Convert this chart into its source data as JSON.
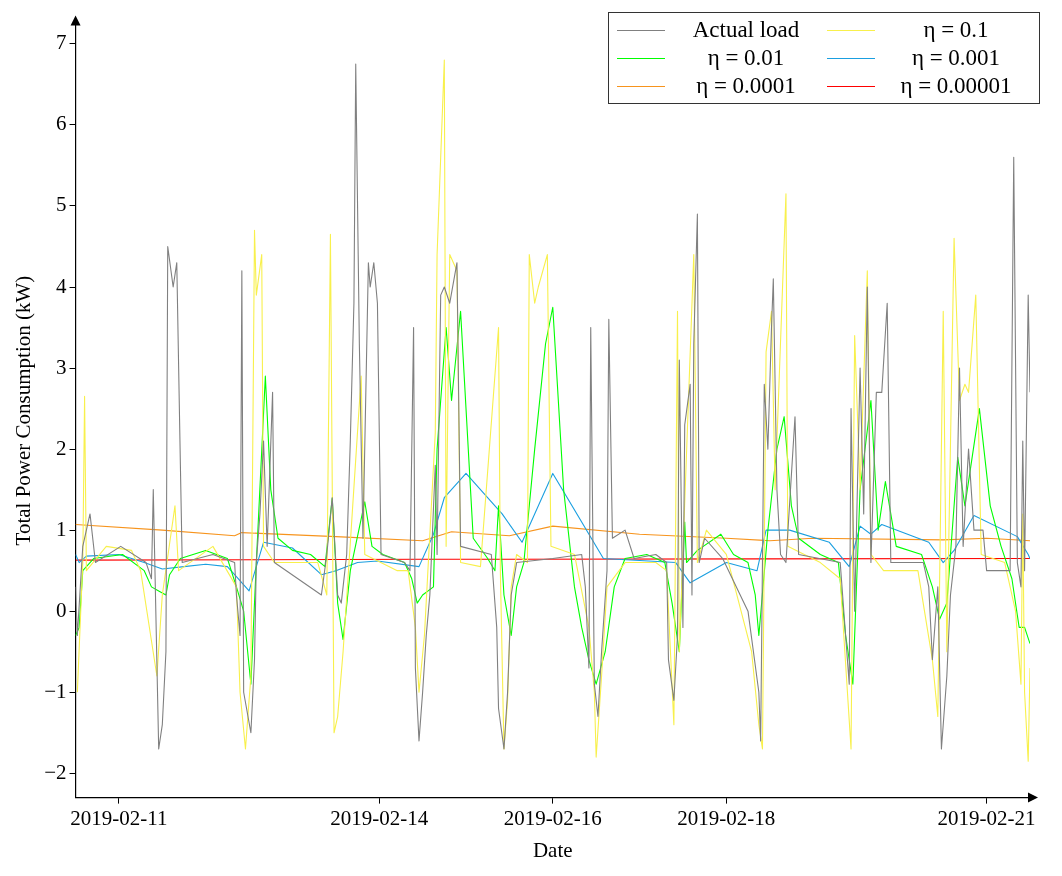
{
  "chart_data": {
    "type": "line",
    "xlabel": "Date",
    "ylabel": "Total Power Consumption (kW)",
    "xlim": [
      "2019-02-10T12:00",
      "2019-02-21T12:00"
    ],
    "xticks": [
      "2019-02-11",
      "2019-02-14",
      "2019-02-16",
      "2019-02-18",
      "2019-02-21"
    ],
    "ylim": [
      -2.3,
      7.25
    ],
    "yticks": [
      -2,
      -1,
      0,
      1,
      2,
      3,
      4,
      5,
      6,
      7
    ],
    "legend": "top right",
    "marker": "none",
    "line_style": "solid",
    "series": [
      {
        "name": "Actual load",
        "color": "#808080",
        "x": [
          "2019-02-10T12:00",
          "2019-02-10T12:30",
          "2019-02-10T14:00",
          "2019-02-10T16:00",
          "2019-02-10T17:30",
          "2019-02-11T00:30",
          "2019-02-11T07:30",
          "2019-02-11T09:00",
          "2019-02-11T09:30",
          "2019-02-11T11:00",
          "2019-02-11T12:00",
          "2019-02-11T13:00",
          "2019-02-11T13:30",
          "2019-02-11T15:00",
          "2019-02-11T16:00",
          "2019-02-11T17:00",
          "2019-02-11T17:30",
          "2019-02-12T02:00",
          "2019-02-12T08:00",
          "2019-02-12T08:30",
          "2019-02-12T09:30",
          "2019-02-12T10:00",
          "2019-02-12T10:30",
          "2019-02-12T12:30",
          "2019-02-12T13:30",
          "2019-02-12T14:00",
          "2019-02-12T15:00",
          "2019-02-12T16:00",
          "2019-02-12T17:00",
          "2019-02-12T18:30",
          "2019-02-12T19:00",
          "2019-02-13T08:00",
          "2019-02-13T09:30",
          "2019-02-13T11:00",
          "2019-02-13T12:30",
          "2019-02-13T13:30",
          "2019-02-13T15:00",
          "2019-02-13T16:00",
          "2019-02-13T17:00",
          "2019-02-13T17:30",
          "2019-02-13T18:30",
          "2019-02-13T19:30",
          "2019-02-13T21:00",
          "2019-02-13T21:30",
          "2019-02-13T22:30",
          "2019-02-13T23:30",
          "2019-02-14T00:30",
          "2019-02-14T07:00",
          "2019-02-14T08:30",
          "2019-02-14T09:30",
          "2019-02-14T10:00",
          "2019-02-14T11:00",
          "2019-02-14T12:00",
          "2019-02-14T13:00",
          "2019-02-14T14:00",
          "2019-02-14T15:30",
          "2019-02-14T16:00",
          "2019-02-14T17:00",
          "2019-02-14T18:00",
          "2019-02-14T19:30",
          "2019-02-14T21:30",
          "2019-02-14T22:30",
          "2019-02-15T07:00",
          "2019-02-15T08:30",
          "2019-02-15T09:00",
          "2019-02-15T10:30",
          "2019-02-15T11:30",
          "2019-02-15T12:30",
          "2019-02-15T14:00",
          "2019-02-16T00:00",
          "2019-02-16T08:00",
          "2019-02-16T09:00",
          "2019-02-16T10:00",
          "2019-02-16T10:30",
          "2019-02-16T11:30",
          "2019-02-16T12:30",
          "2019-02-16T13:30",
          "2019-02-16T15:00",
          "2019-02-16T15:30",
          "2019-02-16T16:30",
          "2019-02-16T20:00",
          "2019-02-16T22:30",
          "2019-02-17T04:30",
          "2019-02-17T07:30",
          "2019-02-17T08:00",
          "2019-02-17T09:30",
          "2019-02-17T10:30",
          "2019-02-17T11:00",
          "2019-02-17T12:00",
          "2019-02-17T12:30",
          "2019-02-17T14:00",
          "2019-02-17T14:30",
          "2019-02-17T15:00",
          "2019-02-17T16:00",
          "2019-02-17T16:30",
          "2019-02-17T18:00",
          "2019-02-17T23:00",
          "2019-02-18T06:00",
          "2019-02-18T09:00",
          "2019-02-18T09:30",
          "2019-02-18T10:30",
          "2019-02-18T11:30",
          "2019-02-18T12:30",
          "2019-02-18T13:00",
          "2019-02-18T14:00",
          "2019-02-18T15:00",
          "2019-02-18T16:30",
          "2019-02-18T19:00",
          "2019-02-18T20:00",
          "2019-02-19T07:30",
          "2019-02-19T09:00",
          "2019-02-19T10:00",
          "2019-02-19T10:30",
          "2019-02-19T11:30",
          "2019-02-19T13:00",
          "2019-02-19T14:00",
          "2019-02-19T15:00",
          "2019-02-19T16:00",
          "2019-02-19T17:30",
          "2019-02-19T19:00",
          "2019-02-19T20:30",
          "2019-02-19T21:30",
          "2019-02-20T06:30",
          "2019-02-20T08:00",
          "2019-02-20T09:00",
          "2019-02-20T10:30",
          "2019-02-20T11:30",
          "2019-02-20T13:00",
          "2019-02-20T14:00",
          "2019-02-20T15:30",
          "2019-02-20T16:30",
          "2019-02-20T17:30",
          "2019-02-20T19:00",
          "2019-02-20T20:30",
          "2019-02-20T23:00",
          "2019-02-21T00:00",
          "2019-02-21T06:30",
          "2019-02-21T07:30",
          "2019-02-21T08:30",
          "2019-02-21T09:30",
          "2019-02-21T10:00",
          "2019-02-21T10:30",
          "2019-02-21T11:30",
          "2019-02-21T12:00"
        ],
        "values": [
          0.3,
          -0.3,
          0.8,
          1.2,
          0.6,
          0.8,
          0.6,
          0.4,
          1.5,
          -1.7,
          -1.4,
          -0.5,
          4.5,
          4.0,
          4.3,
          1.8,
          0.6,
          0.7,
          0.6,
          0.2,
          -0.3,
          4.2,
          -1.0,
          -1.5,
          -0.6,
          0.6,
          1.2,
          2.1,
          0.8,
          2.7,
          0.6,
          0.2,
          0.7,
          1.4,
          0.2,
          0.1,
          0.7,
          2.1,
          3.8,
          6.75,
          3.3,
          0.9,
          4.3,
          4.0,
          4.3,
          3.8,
          0.7,
          0.6,
          0.5,
          3.5,
          -0.7,
          -1.6,
          -1.0,
          -0.3,
          0.2,
          1.8,
          0.7,
          3.9,
          4.0,
          3.8,
          4.3,
          0.8,
          0.7,
          -0.2,
          -1.2,
          -1.7,
          -1.0,
          0.2,
          0.6,
          0.65,
          0.7,
          0.3,
          -0.7,
          3.5,
          -0.9,
          -1.3,
          -0.5,
          0.5,
          3.6,
          0.9,
          1.0,
          0.65,
          0.7,
          0.6,
          -0.6,
          -1.1,
          -0.3,
          3.1,
          -0.2,
          2.3,
          2.8,
          0.2,
          3.3,
          4.9,
          0.6,
          0.9,
          0.65,
          0.0,
          -1.0,
          -1.6,
          2.8,
          2.0,
          3.5,
          4.1,
          1.5,
          0.7,
          0.6,
          2.4,
          0.7,
          0.6,
          -0.3,
          -0.9,
          2.5,
          0.0,
          3.0,
          1.2,
          4.0,
          0.6,
          2.7,
          2.7,
          3.8,
          0.6,
          0.6,
          0.3,
          -0.6,
          0.3,
          -1.7,
          -0.8,
          0.2,
          0.8,
          3.0,
          0.8,
          2.0,
          1.0,
          1.0,
          0.5,
          0.5,
          5.6,
          0.6,
          0.3,
          2.1,
          0.5,
          3.9,
          2.7
        ]
      },
      {
        "name": "η = 0.1",
        "color": "#f8f04c",
        "x": [
          "2019-02-10T12:30",
          "2019-02-10T14:00",
          "2019-02-10T14:30",
          "2019-02-10T15:00",
          "2019-02-10T20:30",
          "2019-02-11T03:30",
          "2019-02-11T06:00",
          "2019-02-11T10:30",
          "2019-02-11T12:00",
          "2019-02-11T15:30",
          "2019-02-11T16:30",
          "2019-02-12T02:00",
          "2019-02-12T08:30",
          "2019-02-12T09:30",
          "2019-02-12T11:00",
          "2019-02-12T12:30",
          "2019-02-12T13:30",
          "2019-02-12T14:00",
          "2019-02-12T15:30",
          "2019-02-12T16:00",
          "2019-02-12T19:00",
          "2019-02-13T07:00",
          "2019-02-13T09:30",
          "2019-02-13T10:30",
          "2019-02-13T11:30",
          "2019-02-13T12:30",
          "2019-02-13T14:00",
          "2019-02-13T15:30",
          "2019-02-13T19:00",
          "2019-02-13T20:00",
          "2019-02-14T05:00",
          "2019-02-14T08:00",
          "2019-02-14T10:00",
          "2019-02-14T11:00",
          "2019-02-14T12:30",
          "2019-02-14T15:30",
          "2019-02-14T16:00",
          "2019-02-14T18:00",
          "2019-02-14T18:30",
          "2019-02-14T19:30",
          "2019-02-14T21:30",
          "2019-02-14T22:30",
          "2019-02-15T04:00",
          "2019-02-15T09:00",
          "2019-02-15T09:30",
          "2019-02-15T10:30",
          "2019-02-15T11:30",
          "2019-02-15T12:30",
          "2019-02-15T14:00",
          "2019-02-15T17:00",
          "2019-02-15T17:30",
          "2019-02-15T19:00",
          "2019-02-15T20:00",
          "2019-02-15T22:30",
          "2019-02-15T23:30",
          "2019-02-16T06:00",
          "2019-02-16T10:00",
          "2019-02-16T11:30",
          "2019-02-16T12:00",
          "2019-02-16T13:30",
          "2019-02-16T15:00",
          "2019-02-16T20:00",
          "2019-02-17T04:30",
          "2019-02-17T07:30",
          "2019-02-17T09:30",
          "2019-02-17T10:30",
          "2019-02-17T11:00",
          "2019-02-17T15:00",
          "2019-02-17T16:00",
          "2019-02-17T18:30",
          "2019-02-18T00:00",
          "2019-02-18T07:00",
          "2019-02-18T09:00",
          "2019-02-18T10:00",
          "2019-02-18T11:00",
          "2019-02-18T12:30",
          "2019-02-18T13:30",
          "2019-02-18T16:30",
          "2019-02-18T17:00",
          "2019-02-19T02:00",
          "2019-02-19T07:30",
          "2019-02-19T09:30",
          "2019-02-19T10:30",
          "2019-02-19T11:30",
          "2019-02-19T13:00",
          "2019-02-19T15:00",
          "2019-02-19T16:00",
          "2019-02-19T19:30",
          "2019-02-20T05:00",
          "2019-02-20T09:00",
          "2019-02-20T10:30",
          "2019-02-20T12:00",
          "2019-02-20T13:00",
          "2019-02-20T15:00",
          "2019-02-20T16:30",
          "2019-02-20T18:00",
          "2019-02-20T19:00",
          "2019-02-20T21:00",
          "2019-02-20T22:30",
          "2019-02-21T05:00",
          "2019-02-21T08:00",
          "2019-02-21T09:30",
          "2019-02-21T10:00",
          "2019-02-21T10:30",
          "2019-02-21T11:30",
          "2019-02-21T12:00"
        ],
        "values": [
          -1.0,
          0.6,
          2.65,
          0.5,
          0.8,
          0.75,
          0.5,
          -0.8,
          0.2,
          1.3,
          0.5,
          0.8,
          0.3,
          -1.0,
          -1.7,
          -0.8,
          4.7,
          3.9,
          4.4,
          0.8,
          0.6,
          0.6,
          0.2,
          4.65,
          -1.5,
          -1.3,
          -0.5,
          0.5,
          2.9,
          0.7,
          0.5,
          0.5,
          -0.2,
          -1.0,
          -0.3,
          2.2,
          4.4,
          6.8,
          0.8,
          4.4,
          4.2,
          0.6,
          0.55,
          3.5,
          0.5,
          -1.7,
          -1.1,
          0.3,
          0.7,
          0.6,
          4.4,
          3.8,
          4.0,
          4.4,
          0.8,
          0.7,
          -0.2,
          -1.0,
          -1.8,
          -0.8,
          0.3,
          0.6,
          0.6,
          0.5,
          -1.4,
          3.7,
          -0.5,
          4.4,
          0.6,
          1.0,
          0.7,
          -0.5,
          -1.4,
          -1.7,
          3.2,
          3.7,
          1.5,
          5.15,
          0.8,
          0.6,
          0.4,
          -1.0,
          -1.7,
          3.4,
          1.5,
          4.2,
          0.7,
          0.5,
          0.5,
          -0.6,
          -1.3,
          3.7,
          -0.5,
          4.6,
          2.6,
          2.8,
          2.7,
          3.9,
          0.7,
          0.6,
          0.0,
          -0.9,
          1.2,
          -1.0,
          -1.85,
          -0.7
        ]
      },
      {
        "name": "η = 0.01",
        "color": "#00ff00",
        "x": [
          "2019-02-10T12:00",
          "2019-02-10T13:00",
          "2019-02-10T14:00",
          "2019-02-10T17:00",
          "2019-02-11T01:00",
          "2019-02-11T07:00",
          "2019-02-11T09:00",
          "2019-02-11T11:00",
          "2019-02-11T13:00",
          "2019-02-11T14:00",
          "2019-02-11T17:00",
          "2019-02-12T00:00",
          "2019-02-12T06:00",
          "2019-02-12T08:30",
          "2019-02-12T10:30",
          "2019-02-12T12:30",
          "2019-02-12T14:00",
          "2019-02-12T16:30",
          "2019-02-12T18:00",
          "2019-02-12T20:00",
          "2019-02-13T00:00",
          "2019-02-13T05:00",
          "2019-02-13T09:00",
          "2019-02-13T11:00",
          "2019-02-13T12:30",
          "2019-02-13T14:00",
          "2019-02-13T16:00",
          "2019-02-13T20:00",
          "2019-02-13T22:00",
          "2019-02-14T01:00",
          "2019-02-14T07:00",
          "2019-02-14T09:00",
          "2019-02-14T10:30",
          "2019-02-14T12:00",
          "2019-02-14T15:00",
          "2019-02-14T16:00",
          "2019-02-14T18:30",
          "2019-02-14T20:00",
          "2019-02-14T22:30",
          "2019-02-15T02:00",
          "2019-02-15T06:00",
          "2019-02-15T08:00",
          "2019-02-15T09:00",
          "2019-02-15T10:30",
          "2019-02-15T12:30",
          "2019-02-15T14:00",
          "2019-02-15T16:00",
          "2019-02-15T19:00",
          "2019-02-15T22:00",
          "2019-02-16T00:00",
          "2019-02-16T03:00",
          "2019-02-16T06:00",
          "2019-02-16T08:00",
          "2019-02-16T10:00",
          "2019-02-16T12:00",
          "2019-02-16T14:30",
          "2019-02-16T17:00",
          "2019-02-16T20:00",
          "2019-02-17T02:00",
          "2019-02-17T07:00",
          "2019-02-17T09:00",
          "2019-02-17T11:00",
          "2019-02-17T12:30",
          "2019-02-17T13:00",
          "2019-02-17T16:00",
          "2019-02-17T22:30",
          "2019-02-18T02:00",
          "2019-02-18T06:00",
          "2019-02-18T08:00",
          "2019-02-18T09:00",
          "2019-02-18T11:30",
          "2019-02-18T14:00",
          "2019-02-18T16:00",
          "2019-02-18T18:00",
          "2019-02-18T20:00",
          "2019-02-19T02:00",
          "2019-02-19T07:00",
          "2019-02-19T09:00",
          "2019-02-19T11:00",
          "2019-02-19T13:00",
          "2019-02-19T16:00",
          "2019-02-19T18:00",
          "2019-02-19T20:00",
          "2019-02-19T23:00",
          "2019-02-20T06:00",
          "2019-02-20T09:00",
          "2019-02-20T11:00",
          "2019-02-20T13:00",
          "2019-02-20T16:00",
          "2019-02-20T18:00",
          "2019-02-20T22:00",
          "2019-02-21T01:00",
          "2019-02-21T04:00",
          "2019-02-21T07:00",
          "2019-02-21T09:00",
          "2019-02-21T10:30",
          "2019-02-21T12:00"
        ],
        "values": [
          -0.3,
          -0.2,
          0.5,
          0.65,
          0.7,
          0.5,
          0.3,
          0.25,
          0.2,
          0.45,
          0.65,
          0.75,
          0.65,
          0.3,
          0.0,
          -0.9,
          0.6,
          2.9,
          1.5,
          0.9,
          0.75,
          0.7,
          0.55,
          1.4,
          0.1,
          -0.35,
          0.5,
          1.35,
          0.8,
          0.7,
          0.6,
          0.4,
          0.1,
          0.2,
          0.3,
          2.0,
          3.5,
          2.6,
          3.7,
          0.9,
          0.65,
          0.5,
          1.3,
          0.2,
          -0.3,
          0.3,
          0.6,
          2.0,
          3.3,
          3.75,
          1.5,
          0.3,
          -0.2,
          -0.6,
          -0.9,
          -0.5,
          0.3,
          0.65,
          0.7,
          0.6,
          0.1,
          -0.5,
          1.1,
          0.6,
          0.75,
          0.95,
          0.7,
          0.6,
          0.2,
          -0.3,
          1.0,
          2.0,
          2.4,
          1.3,
          0.9,
          0.7,
          0.6,
          -0.3,
          -0.9,
          1.5,
          2.6,
          1.0,
          1.6,
          0.8,
          0.7,
          0.3,
          -0.1,
          0.1,
          1.9,
          1.3,
          2.5,
          1.3,
          0.8,
          0.4,
          -0.2,
          -0.2,
          -0.4
        ]
      },
      {
        "name": "η = 0.001",
        "color": "#1a9fe0",
        "x": [
          "2019-02-10T12:00",
          "2019-02-10T13:00",
          "2019-02-10T15:00",
          "2019-02-11T00:00",
          "2019-02-11T07:00",
          "2019-02-11T12:00",
          "2019-02-11T18:00",
          "2019-02-12T00:00",
          "2019-02-12T06:00",
          "2019-02-12T08:00",
          "2019-02-12T12:00",
          "2019-02-12T16:00",
          "2019-02-13T00:00",
          "2019-02-13T08:00",
          "2019-02-13T12:00",
          "2019-02-13T18:00",
          "2019-02-13T23:30",
          "2019-02-14T11:00",
          "2019-02-14T15:00",
          "2019-02-14T18:00",
          "2019-02-15T00:00",
          "2019-02-15T10:00",
          "2019-02-15T15:30",
          "2019-02-16T00:00",
          "2019-02-16T14:00",
          "2019-02-17T10:00",
          "2019-02-17T14:00",
          "2019-02-18T00:00",
          "2019-02-18T08:30",
          "2019-02-18T11:00",
          "2019-02-18T17:30",
          "2019-02-19T04:30",
          "2019-02-19T10:00",
          "2019-02-19T13:00",
          "2019-02-19T16:00",
          "2019-02-19T19:00",
          "2019-02-20T08:00",
          "2019-02-20T12:00",
          "2019-02-20T15:00",
          "2019-02-20T20:30",
          "2019-02-21T08:30",
          "2019-02-21T11:30",
          "2019-02-21T12:00"
        ],
        "values": [
          0.7,
          0.6,
          0.68,
          0.7,
          0.6,
          0.52,
          0.55,
          0.58,
          0.55,
          0.45,
          0.25,
          0.85,
          0.78,
          0.45,
          0.5,
          0.6,
          0.62,
          0.55,
          0.95,
          1.4,
          1.7,
          1.2,
          0.85,
          1.7,
          0.65,
          0.6,
          0.35,
          0.6,
          0.5,
          1.0,
          1.0,
          0.85,
          0.55,
          1.05,
          0.95,
          1.07,
          0.85,
          0.6,
          0.75,
          1.18,
          0.92,
          0.7,
          0.65
        ]
      },
      {
        "name": "η = 0.0001",
        "color": "#f7941d",
        "x": [
          "2019-02-10T12:00",
          "2019-02-11T12:00",
          "2019-02-12T08:00",
          "2019-02-12T10:00",
          "2019-02-13T12:00",
          "2019-02-14T12:00",
          "2019-02-14T20:00",
          "2019-02-15T12:00",
          "2019-02-16T00:00",
          "2019-02-17T00:00",
          "2019-02-18T00:00",
          "2019-02-18T12:00",
          "2019-02-19T00:00",
          "2019-02-20T12:00",
          "2019-02-21T00:00",
          "2019-02-21T12:00"
        ],
        "values": [
          1.07,
          1.0,
          0.93,
          0.97,
          0.92,
          0.87,
          0.98,
          0.93,
          1.05,
          0.95,
          0.9,
          0.87,
          0.9,
          0.88,
          0.9,
          0.87
        ]
      },
      {
        "name": "η = 0.00001",
        "color": "#ff0000",
        "x": [
          "2019-02-10T12:00",
          "2019-02-14T12:00",
          "2019-02-21T12:00"
        ],
        "values": [
          0.63,
          0.64,
          0.65
        ]
      }
    ]
  }
}
